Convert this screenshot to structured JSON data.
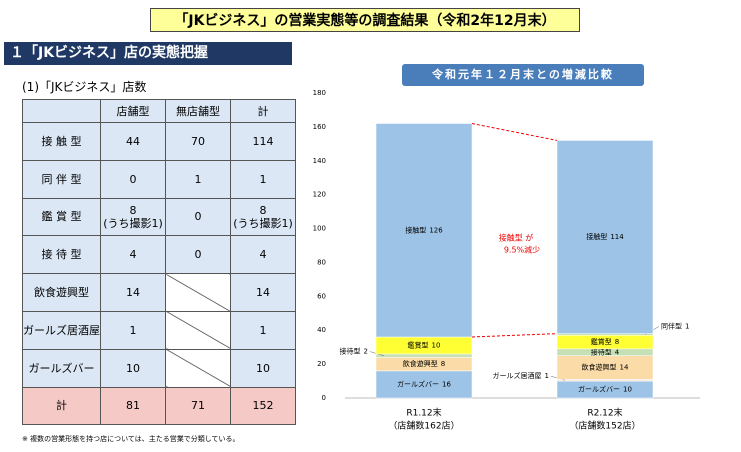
{
  "header": {
    "title": "「JKビジネス」の営業実態等の調査結果（令和2年12月末）",
    "section": "１「JKビジネス」店の実態把握",
    "subheading": "(1)「JKビジネス」店数"
  },
  "table": {
    "header": [
      "店舗型",
      "無店舗型",
      "計"
    ],
    "rows": [
      [
        "接 触 型",
        44,
        70,
        114
      ],
      [
        "同 伴 型",
        0,
        1,
        1
      ],
      [
        "鑑 賞 型",
        "8\n(うち撮影1)",
        0,
        "8\n(うち撮影1)"
      ],
      [
        "接 待 型",
        4,
        0,
        4
      ],
      [
        "飲食遊興型",
        14,
        null,
        14
      ],
      [
        "ガールズ居酒屋",
        1,
        null,
        1
      ],
      [
        "ガールズバー",
        10,
        null,
        10
      ],
      [
        "計",
        81,
        71,
        152
      ]
    ]
  },
  "footnote": "※ 複数の営業形態を持つ店については、主たる営業で分類している。",
  "chart_data": {
    "type": "stacked-bar",
    "title": "令和元年１２月末との増減比較",
    "categories": [
      "R1.12末",
      "R2.12末"
    ],
    "category_sublabels": [
      "（店舗数162店）",
      "（店舗数152店）"
    ],
    "ylim": [
      0,
      180
    ],
    "yticks": [
      0,
      20,
      40,
      60,
      80,
      100,
      120,
      140,
      160,
      180
    ],
    "series": [
      {
        "name": "ガールズバー",
        "color": "#9dc3e6",
        "values": [
          16,
          10
        ]
      },
      {
        "name": "ガールズ居酒屋",
        "color": "#fbe5d6",
        "values": [
          null,
          1
        ]
      },
      {
        "name": "飲食遊興型",
        "color": "#fbdca8",
        "values": [
          8,
          14
        ]
      },
      {
        "name": "接待型",
        "color": "#c5e0b4",
        "values": [
          2,
          4
        ]
      },
      {
        "name": "鑑賞型",
        "color": "#ffff33",
        "values": [
          10,
          8
        ]
      },
      {
        "name": "同伴型",
        "color": "#c5e0b4",
        "values": [
          null,
          1
        ]
      },
      {
        "name": "接触型",
        "color": "#9dc3e6",
        "values": [
          126,
          114
        ]
      }
    ],
    "annotation": [
      "接触型 が",
      "9.5%減少"
    ]
  }
}
